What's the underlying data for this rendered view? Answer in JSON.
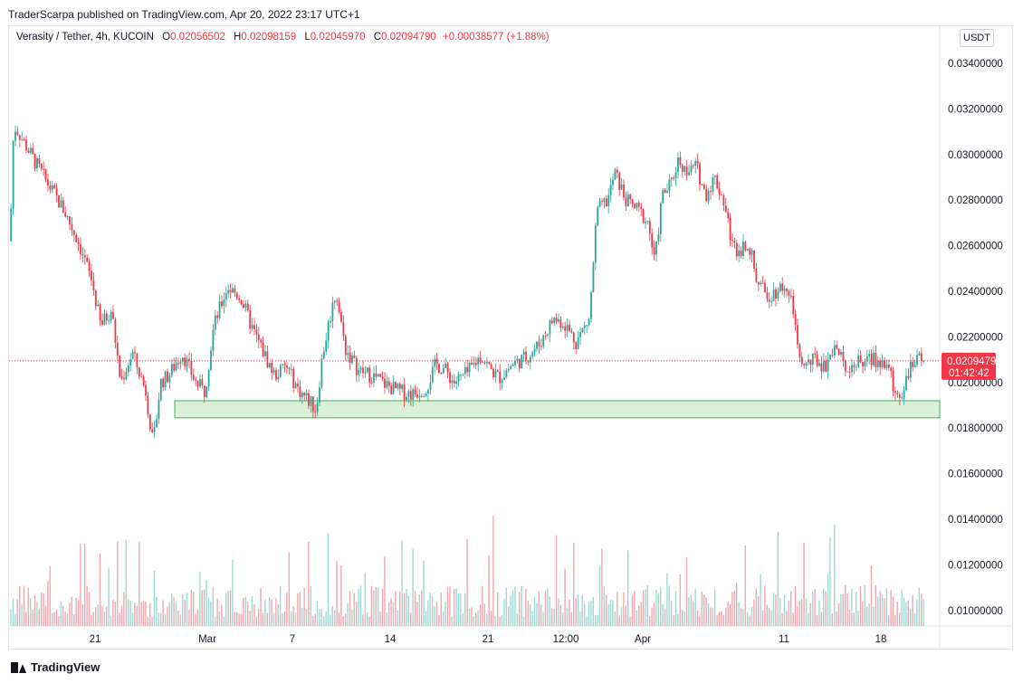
{
  "header": {
    "publisher": "TraderScarpa published on TradingView.com, Apr 20, 2022 23:17 UTC+1"
  },
  "legend": {
    "symbol": "Verasity / Tether, 4h, KUCOIN",
    "open_label": "O",
    "open_value": "0.02056502",
    "high_label": "H",
    "high_value": "0.02098159",
    "low_label": "L",
    "low_value": "0.02045970",
    "close_label": "C",
    "close_value": "0.02094790",
    "change": "+0.00038577 (+1.88%)"
  },
  "price_scale": {
    "unit": "USDT"
  },
  "last_price": {
    "value": "0.02094790",
    "countdown": "01:42:42"
  },
  "footer": {
    "brand": "TradingView"
  },
  "colors": {
    "up": "#26a69a",
    "down": "#f23645",
    "zone_fill": "#d9f0d9",
    "zone_border": "#4caf50"
  },
  "chart_data": {
    "type": "candlestick",
    "y_tick_labels": [
      "0.03400000",
      "0.03200000",
      "0.03000000",
      "0.02800000",
      "0.02600000",
      "0.02400000",
      "0.02200000",
      "0.02000000",
      "0.01800000",
      "0.01600000",
      "0.01400000",
      "0.01200000",
      "0.01000000"
    ],
    "x_tick_labels": [
      "21",
      "Mar",
      "7",
      "14",
      "21",
      "12:00",
      "Apr",
      "11",
      "18"
    ],
    "last_close": 0.0209479,
    "support_zone": {
      "low": 0.01845,
      "high": 0.0192
    },
    "path_knots": [
      [
        0,
        0.0262
      ],
      [
        3,
        0.0305
      ],
      [
        6,
        0.0312
      ],
      [
        20,
        0.0302
      ],
      [
        30,
        0.0295
      ],
      [
        45,
        0.0285
      ],
      [
        60,
        0.0275
      ],
      [
        75,
        0.0262
      ],
      [
        90,
        0.0245
      ],
      [
        100,
        0.0225
      ],
      [
        112,
        0.0232
      ],
      [
        122,
        0.02
      ],
      [
        135,
        0.0213
      ],
      [
        150,
        0.0196
      ],
      [
        158,
        0.0172
      ],
      [
        166,
        0.02
      ],
      [
        175,
        0.0203
      ],
      [
        190,
        0.0213
      ],
      [
        205,
        0.02
      ],
      [
        215,
        0.0196
      ],
      [
        225,
        0.0225
      ],
      [
        240,
        0.0242
      ],
      [
        255,
        0.0237
      ],
      [
        268,
        0.0223
      ],
      [
        280,
        0.0213
      ],
      [
        292,
        0.0203
      ],
      [
        305,
        0.0207
      ],
      [
        318,
        0.0197
      ],
      [
        330,
        0.0192
      ],
      [
        338,
        0.0188
      ],
      [
        345,
        0.0212
      ],
      [
        355,
        0.0232
      ],
      [
        360,
        0.024
      ],
      [
        370,
        0.0215
      ],
      [
        385,
        0.0205
      ],
      [
        400,
        0.0203
      ],
      [
        415,
        0.0199
      ],
      [
        430,
        0.0196
      ],
      [
        445,
        0.0195
      ],
      [
        460,
        0.0198
      ],
      [
        470,
        0.0208
      ],
      [
        480,
        0.0206
      ],
      [
        490,
        0.02
      ],
      [
        505,
        0.0204
      ],
      [
        520,
        0.0212
      ],
      [
        530,
        0.0206
      ],
      [
        540,
        0.0202
      ],
      [
        555,
        0.0208
      ],
      [
        570,
        0.0211
      ],
      [
        585,
        0.0217
      ],
      [
        600,
        0.0228
      ],
      [
        612,
        0.0226
      ],
      [
        625,
        0.0218
      ],
      [
        640,
        0.0228
      ],
      [
        648,
        0.0275
      ],
      [
        660,
        0.028
      ],
      [
        668,
        0.0292
      ],
      [
        680,
        0.028
      ],
      [
        695,
        0.0275
      ],
      [
        705,
        0.027
      ],
      [
        712,
        0.0252
      ],
      [
        720,
        0.0282
      ],
      [
        730,
        0.0287
      ],
      [
        738,
        0.0298
      ],
      [
        748,
        0.0292
      ],
      [
        758,
        0.0295
      ],
      [
        768,
        0.0282
      ],
      [
        778,
        0.029
      ],
      [
        788,
        0.028
      ],
      [
        798,
        0.026
      ],
      [
        805,
        0.0258
      ],
      [
        815,
        0.0262
      ],
      [
        825,
        0.0245
      ],
      [
        835,
        0.0238
      ],
      [
        845,
        0.024
      ],
      [
        855,
        0.0243
      ],
      [
        865,
        0.0232
      ],
      [
        872,
        0.0208
      ],
      [
        880,
        0.0208
      ],
      [
        890,
        0.021
      ],
      [
        900,
        0.0207
      ],
      [
        910,
        0.0217
      ],
      [
        918,
        0.021
      ],
      [
        925,
        0.0207
      ],
      [
        940,
        0.0209
      ],
      [
        955,
        0.021
      ],
      [
        970,
        0.0207
      ],
      [
        978,
        0.0194
      ],
      [
        985,
        0.0196
      ],
      [
        992,
        0.0205
      ],
      [
        1000,
        0.0208
      ],
      [
        1012,
        0.0213
      ],
      [
        1020,
        0.0209
      ]
    ]
  }
}
